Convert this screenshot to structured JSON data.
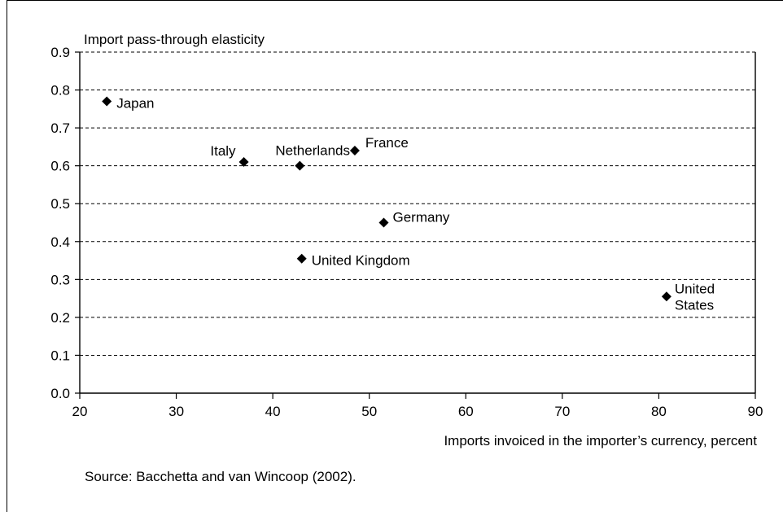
{
  "chart_data": {
    "type": "scatter",
    "title": "",
    "ylabel": "Import pass-through elasticity",
    "xlabel": "Imports invoiced in the importer’s currency, percent",
    "xlim": [
      20,
      90
    ],
    "ylim": [
      0,
      0.9
    ],
    "x_ticks": [
      "20",
      "30",
      "40",
      "50",
      "60",
      "70",
      "80",
      "90"
    ],
    "y_ticks": [
      "0.0",
      "0.1",
      "0.2",
      "0.3",
      "0.4",
      "0.5",
      "0.6",
      "0.7",
      "0.8",
      "0.9"
    ],
    "grid": "horizontal dashed",
    "marker": "diamond",
    "marker_color": "#000000",
    "points": [
      {
        "label": "Japan",
        "x": 22.8,
        "y": 0.77
      },
      {
        "label": "Italy",
        "x": 37.0,
        "y": 0.61
      },
      {
        "label": "Netherlands",
        "x": 42.8,
        "y": 0.6
      },
      {
        "label": "France",
        "x": 48.5,
        "y": 0.64
      },
      {
        "label": "Germany",
        "x": 51.5,
        "y": 0.45
      },
      {
        "label": "United Kingdom",
        "x": 43.0,
        "y": 0.355
      },
      {
        "label": "United\nStates",
        "x": 80.8,
        "y": 0.255
      }
    ]
  },
  "source": "Source: Bacchetta and van Wincoop (2002)."
}
